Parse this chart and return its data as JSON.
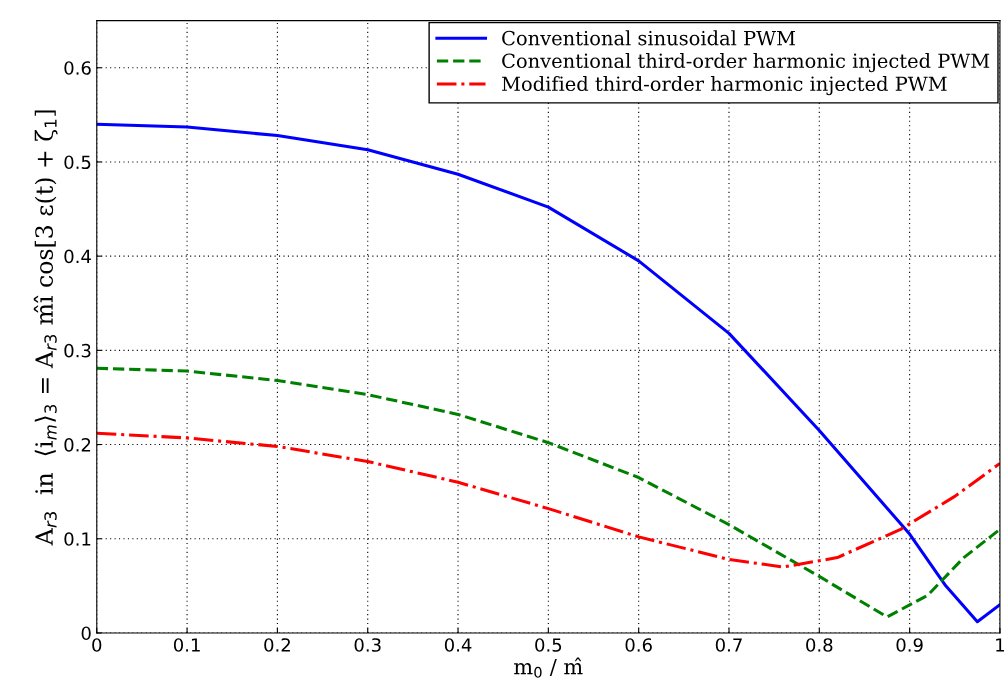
{
  "chart_data": {
    "type": "line",
    "xlabel": "m$_{0}$ / m̂",
    "ylabel": "A$_{r3}$  in  ⟨i$_{m}$⟩$_{3}$ = A$_{r3}$ m̂î cos[3 ε(t) + ζ$_{1}$]",
    "xlim": [
      0,
      1
    ],
    "ylim": [
      0,
      0.65
    ],
    "xticks": [
      0,
      0.1,
      0.2,
      0.3,
      0.4,
      0.5,
      0.6,
      0.7,
      0.8,
      0.9,
      1
    ],
    "yticks": [
      0,
      0.1,
      0.2,
      0.3,
      0.4,
      0.5,
      0.6
    ],
    "grid": true,
    "legend": "top right",
    "series": [
      {
        "name": "Conventional sinusoidal PWM",
        "color": "#0000ff",
        "line_style": "solid",
        "x": [
          0,
          0.1,
          0.2,
          0.3,
          0.4,
          0.5,
          0.6,
          0.7,
          0.8,
          0.9,
          0.94,
          0.975,
          1.0
        ],
        "values": [
          0.54,
          0.537,
          0.528,
          0.513,
          0.487,
          0.452,
          0.395,
          0.318,
          0.215,
          0.105,
          0.05,
          0.012,
          0.03
        ]
      },
      {
        "name": "Conventional third-order harmonic injected PWM",
        "color": "#008000",
        "line_style": "dashed",
        "x": [
          0,
          0.1,
          0.2,
          0.3,
          0.4,
          0.5,
          0.6,
          0.7,
          0.8,
          0.875,
          0.92,
          0.96,
          1.0
        ],
        "values": [
          0.281,
          0.278,
          0.268,
          0.253,
          0.232,
          0.202,
          0.165,
          0.115,
          0.06,
          0.017,
          0.04,
          0.08,
          0.11
        ]
      },
      {
        "name": "Modified third-order harmonic injected PWM",
        "color": "#ff0000",
        "line_style": "dashdot",
        "x": [
          0,
          0.1,
          0.2,
          0.3,
          0.4,
          0.5,
          0.6,
          0.7,
          0.76,
          0.82,
          0.89,
          0.95,
          1.0
        ],
        "values": [
          0.212,
          0.207,
          0.198,
          0.182,
          0.16,
          0.132,
          0.102,
          0.078,
          0.07,
          0.08,
          0.11,
          0.145,
          0.18
        ]
      }
    ]
  }
}
